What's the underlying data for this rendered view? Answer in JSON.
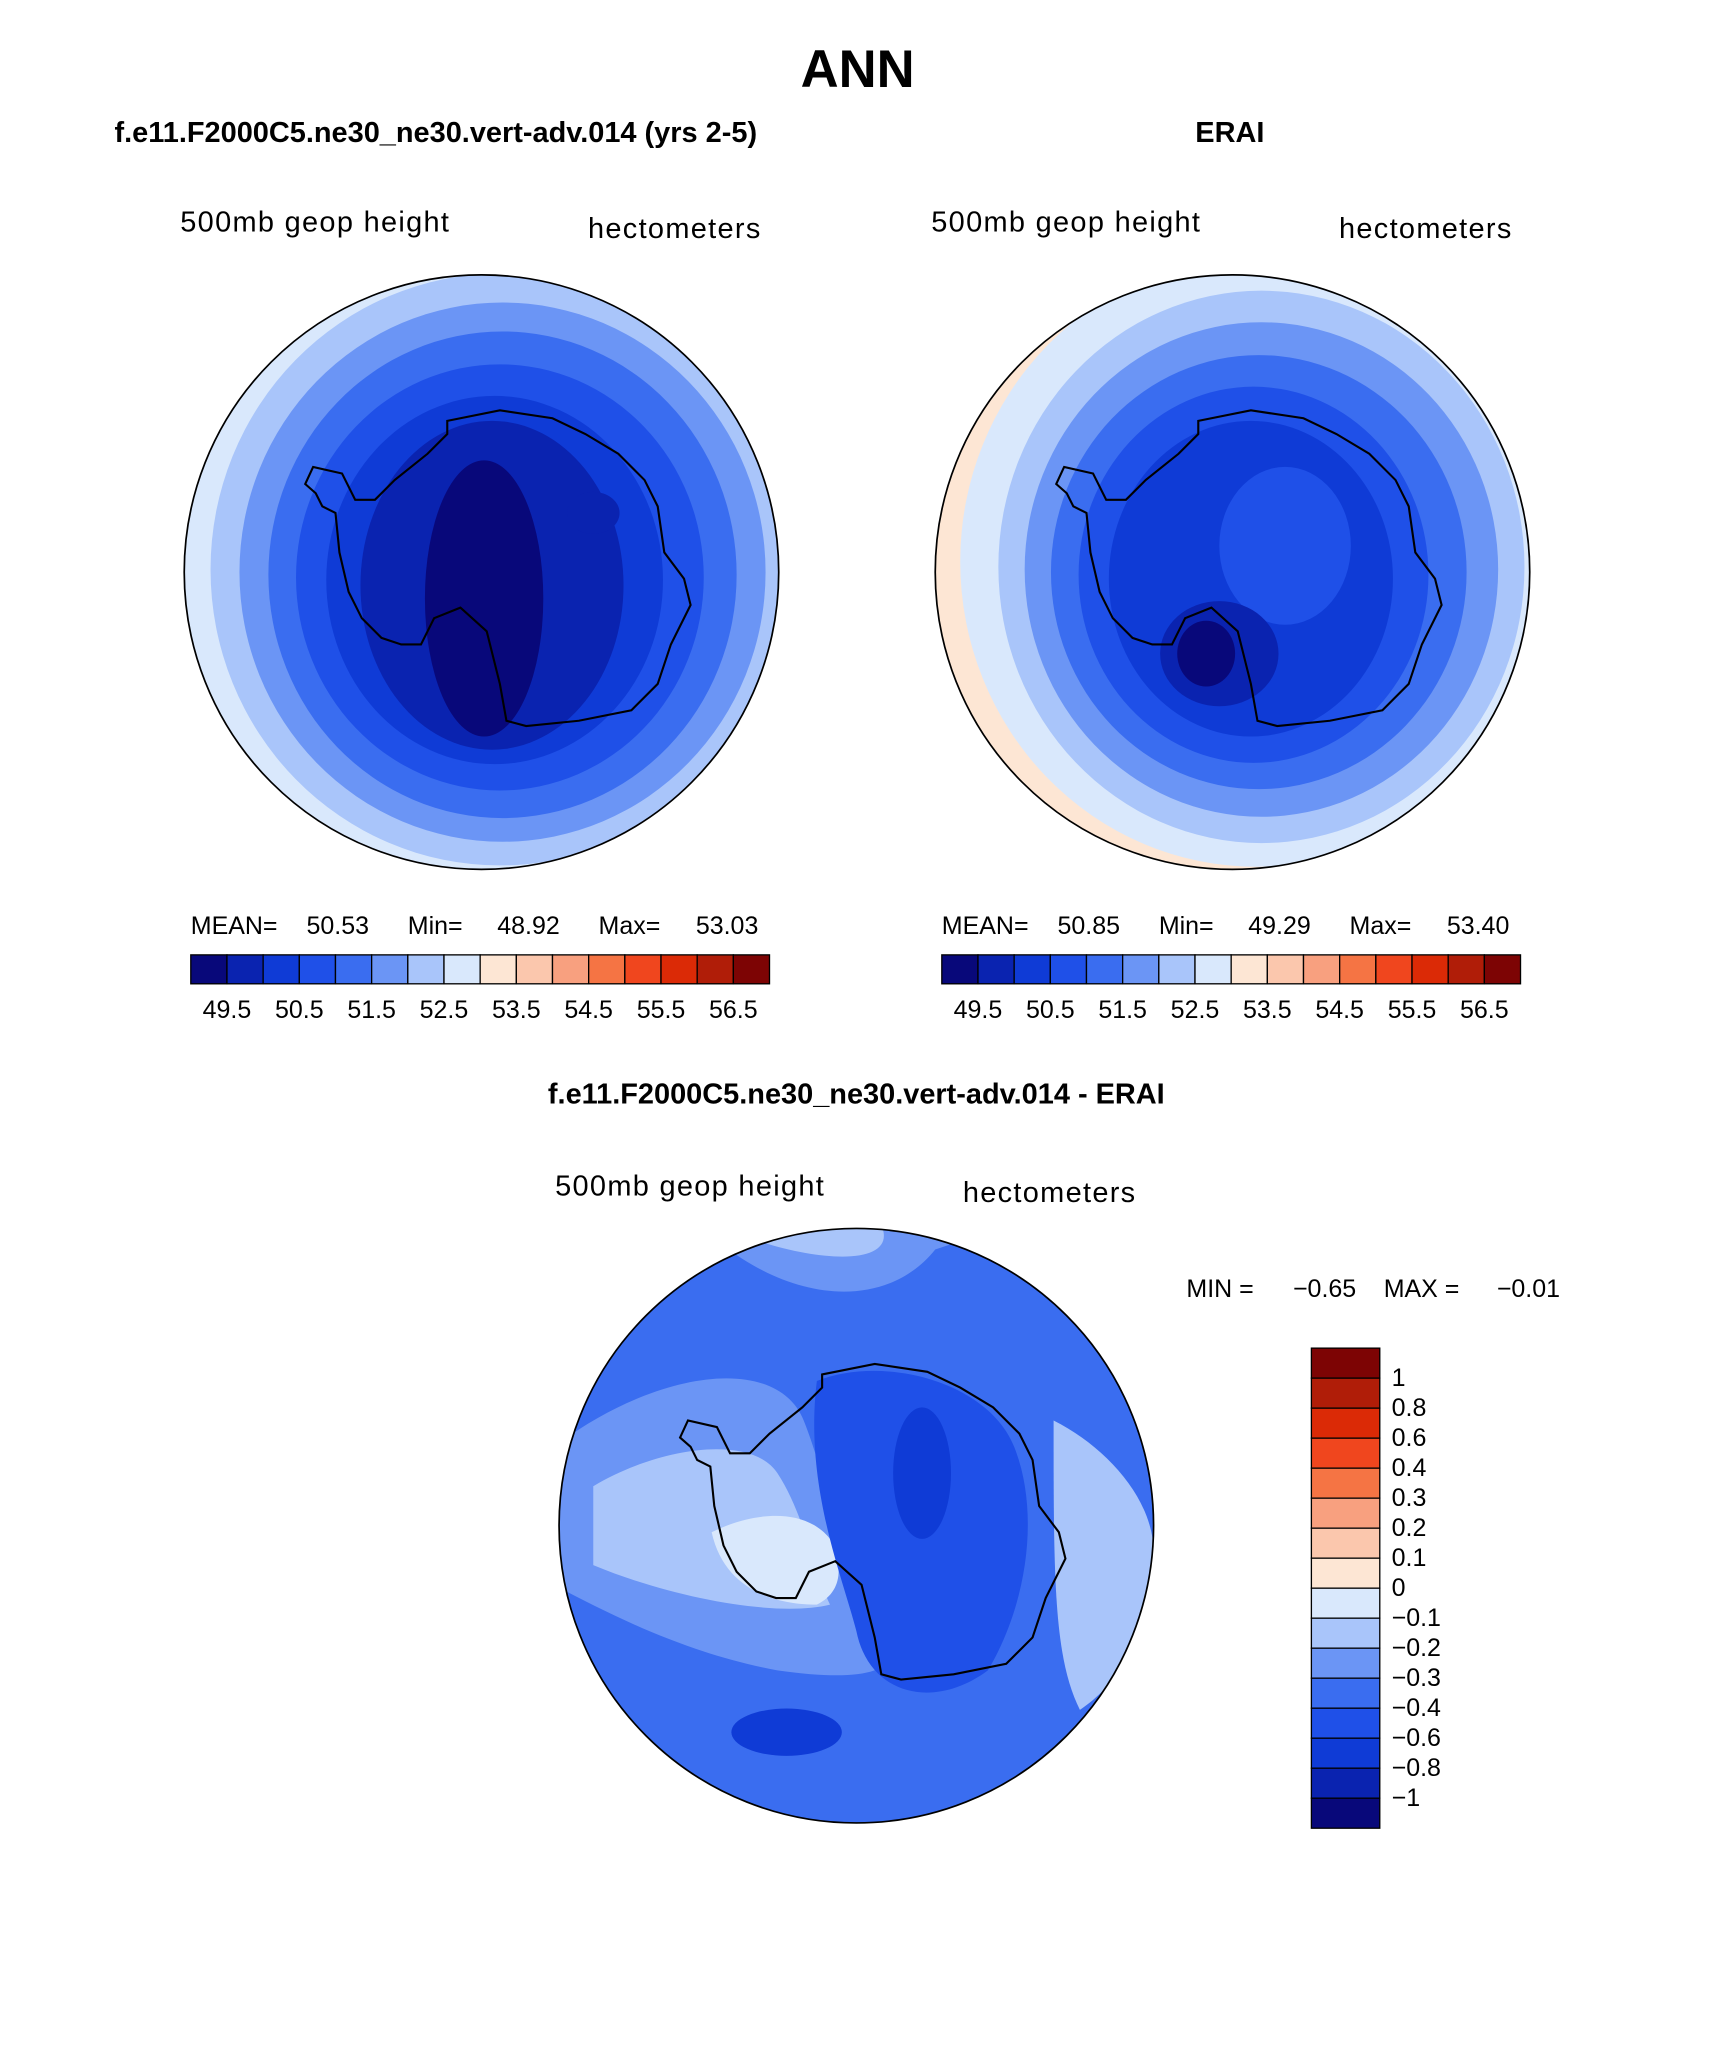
{
  "title": "ANN",
  "panels": [
    {
      "subtitle": "f.e11.F2000C5.ne30_ne30.vert-adv.014 (yrs 2-5)",
      "field": "500mb  geop  height",
      "units": "hectometers",
      "stats": {
        "mean_label": "MEAN=",
        "mean": "50.53",
        "min_label": "Min=",
        "min": "48.92",
        "max_label": "Max=",
        "max": "53.03"
      }
    },
    {
      "subtitle": "ERAI",
      "field": "500mb  geop  height",
      "units": "hectometers",
      "stats": {
        "mean_label": "MEAN=",
        "mean": "50.85",
        "min_label": "Min=",
        "min": "49.29",
        "max_label": "Max=",
        "max": "53.40"
      }
    }
  ],
  "colorbar": {
    "colors": [
      "#08087a",
      "#0a23b0",
      "#0f3bd6",
      "#1f50e8",
      "#3a6df0",
      "#6b95f5",
      "#a9c5fa",
      "#d9e8fc",
      "#fde6d4",
      "#fbc7ad",
      "#f8a07f",
      "#f57444",
      "#f0461e",
      "#db2a06",
      "#b01d08",
      "#7d0404"
    ],
    "labels": [
      "49.5",
      "50.5",
      "51.5",
      "52.5",
      "53.5",
      "54.5",
      "55.5",
      "56.5"
    ]
  },
  "difference": {
    "subtitle": "f.e11.F2000C5.ne30_ne30.vert-adv.014 - ERAI",
    "field": "500mb  geop  height",
    "units": "hectometers",
    "stats": {
      "min_label": "MIN =",
      "min": "−0.65",
      "max_label": "MAX =",
      "max": "−0.01"
    },
    "colorbar": {
      "colors": [
        "#7d0404",
        "#b01d08",
        "#db2a06",
        "#f0461e",
        "#f57444",
        "#f8a07f",
        "#fbc7ad",
        "#fde6d4",
        "#d9e8fc",
        "#a9c5fa",
        "#6b95f5",
        "#3a6df0",
        "#1f50e8",
        "#0f3bd6",
        "#0a23b0",
        "#08087a"
      ],
      "labels": [
        "1",
        "0.8",
        "0.6",
        "0.4",
        "0.3",
        "0.2",
        "0.1",
        "0",
        "−0.1",
        "−0.2",
        "−0.3",
        "−0.4",
        "−0.6",
        "−0.8",
        "−1"
      ]
    }
  }
}
